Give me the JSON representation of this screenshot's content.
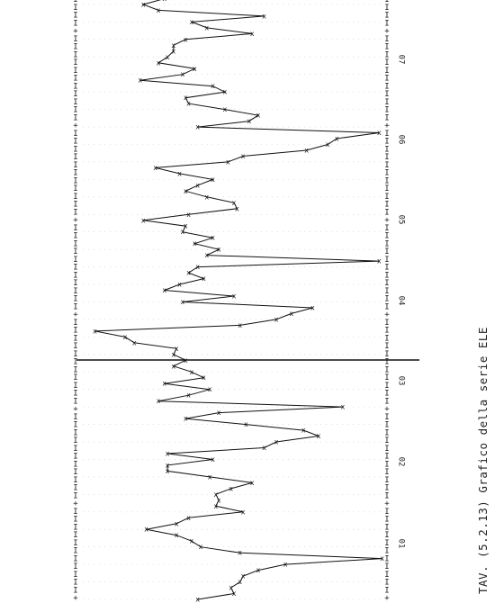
{
  "chart_data": {
    "type": "line",
    "title": "TAV. (5.2.13) Grafico della serie ELE",
    "orientation": "rotated: time axis vertical (bottom to top), value axis horizontal",
    "axis_mark_char": "I",
    "axis_plus_char": "+",
    "point_marker": "x",
    "tick_labels": [
      "01",
      "02",
      "03",
      "04",
      "05",
      "06",
      "07"
    ],
    "x_label": "",
    "y_label": "",
    "grid": "dotted horizontal guide lines",
    "series": [
      {
        "values": [
          0.38,
          0.5,
          0.49,
          0.52,
          0.53,
          0.58,
          0.67,
          0.99,
          0.52,
          0.39,
          0.36,
          0.31,
          0.21,
          0.31,
          0.35,
          0.53,
          0.44,
          0.45,
          0.44,
          0.49,
          0.56,
          0.42,
          0.28,
          0.28,
          0.43,
          0.28,
          0.6,
          0.64,
          0.78,
          0.73,
          0.54,
          0.34,
          0.45,
          0.86,
          0.25,
          0.35,
          0.42,
          0.27,
          0.4,
          0.36,
          0.3,
          0.34,
          0.3,
          0.31,
          0.17,
          0.14,
          0.04,
          0.52,
          0.64,
          0.69,
          0.76,
          0.33,
          0.5,
          0.27,
          0.32,
          0.4,
          0.35,
          0.38,
          0.98,
          0.41,
          0.45,
          0.37,
          0.43,
          0.33,
          0.34,
          0.2,
          0.35,
          0.51,
          0.5,
          0.41,
          0.34,
          0.38,
          0.43,
          0.32,
          0.24,
          0.48,
          0.53,
          0.74,
          0.81,
          0.84,
          0.98,
          0.38,
          0.55,
          0.58,
          0.47,
          0.35,
          0.34,
          0.47,
          0.43,
          0.19,
          0.33,
          0.37,
          0.25,
          0.28,
          0.3,
          0.3,
          0.34,
          0.56,
          0.41,
          0.36,
          0.6,
          0.25,
          0.2,
          0.27,
          0.06
        ]
      }
    ]
  }
}
